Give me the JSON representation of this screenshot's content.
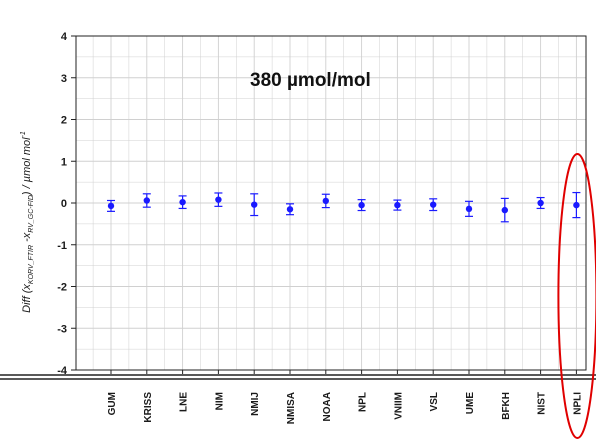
{
  "chart_data": {
    "type": "scatter",
    "title": "",
    "annotation": "380 µmol/mol",
    "ylabel": {
      "prefix": "Diff (x",
      "sub1": "KORV_FTIR",
      "mid": " -x",
      "sub2": "RV_GC-FID",
      "suffix": ") / µmol mol",
      "sup": "-1"
    },
    "xlabel": "",
    "ylim": [
      -4,
      4
    ],
    "yticks": [
      4,
      3,
      2,
      1,
      0,
      -1,
      -2,
      -3,
      -4
    ],
    "categories": [
      "GUM",
      "KRISS",
      "LNE",
      "NIM",
      "NMIJ",
      "NMISA",
      "NOAA",
      "NPL",
      "VNIIM",
      "VSL",
      "UME",
      "BFKH",
      "NIST",
      "NPLI"
    ],
    "series": [
      {
        "values": [
          -0.07,
          0.06,
          0.02,
          0.08,
          -0.04,
          -0.15,
          0.05,
          -0.05,
          -0.05,
          -0.04,
          -0.14,
          -0.17,
          0.0,
          -0.05
        ],
        "error": [
          0.13,
          0.16,
          0.15,
          0.16,
          0.26,
          0.13,
          0.16,
          0.13,
          0.12,
          0.14,
          0.18,
          0.28,
          0.13,
          0.3
        ]
      }
    ],
    "grid": true,
    "highlight": "NPLI",
    "colors": {
      "marker": "#1a1aff",
      "highlight": "#e00000",
      "grid": "#d0d0d0",
      "axis": "#222222"
    }
  }
}
